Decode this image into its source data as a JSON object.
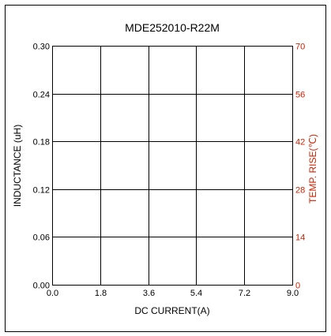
{
  "chart_data": {
    "type": "line",
    "title": "MDE252010-R22M",
    "xlabel": "DC CURRENT(A)",
    "ylabel": "INDUCTANCE (uH)",
    "y2label": "TEMP. RISE(℃)",
    "xlim": [
      0,
      9
    ],
    "ylim": [
      0,
      0.3
    ],
    "y2lim": [
      0,
      70
    ],
    "x_ticks": [
      "0.0",
      "1.8",
      "3.6",
      "5.4",
      "7.2",
      "9.0"
    ],
    "y_ticks": [
      "0.00",
      "0.06",
      "0.12",
      "0.18",
      "0.24",
      "0.30"
    ],
    "y2_ticks": [
      "0",
      "14",
      "28",
      "42",
      "56",
      "70"
    ],
    "grid": true,
    "series": []
  },
  "colors": {
    "axis": "#000000",
    "secondary_axis": "#cc2200",
    "frame": "#000000"
  }
}
